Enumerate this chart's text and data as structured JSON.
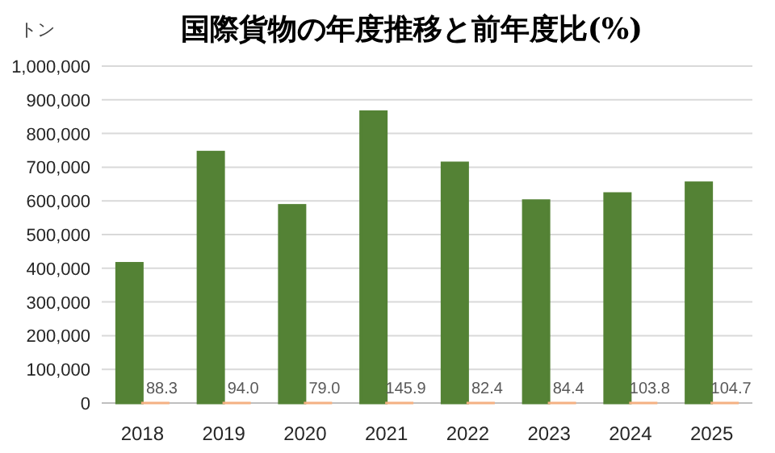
{
  "chart_data": {
    "type": "bar",
    "title": "国際貨物の年度推移と前年度比(%)",
    "ylabel": "トン",
    "categories": [
      "2018",
      "2019",
      "2020",
      "2021",
      "2022",
      "2023",
      "2024",
      "2025"
    ],
    "series": [
      {
        "color": "#548235",
        "values": [
          415000,
          745000,
          587000,
          865000,
          713000,
          601000,
          622000,
          654000
        ]
      },
      {
        "color": "#f4b183",
        "values": [
          88.3,
          94.0,
          79.0,
          145.9,
          82.4,
          84.4,
          103.8,
          104.7
        ],
        "value_labels": [
          "88.3",
          "94.0",
          "79.0",
          "145.9",
          "82.4",
          "84.4",
          "103.8",
          "104.7"
        ]
      }
    ],
    "ylim": [
      0,
      1000000
    ],
    "yticks": [
      {
        "value": 0,
        "label": "0"
      },
      {
        "value": 100000,
        "label": "100,000"
      },
      {
        "value": 200000,
        "label": "200,000"
      },
      {
        "value": 300000,
        "label": "300,000"
      },
      {
        "value": 400000,
        "label": "400,000"
      },
      {
        "value": 500000,
        "label": "500,000"
      },
      {
        "value": 600000,
        "label": "600,000"
      },
      {
        "value": 700000,
        "label": "700,000"
      },
      {
        "value": 800000,
        "label": "800,000"
      },
      {
        "value": 900000,
        "label": "900,000"
      },
      {
        "value": 1000000,
        "label": "1,000,000"
      }
    ],
    "grid": "y"
  }
}
